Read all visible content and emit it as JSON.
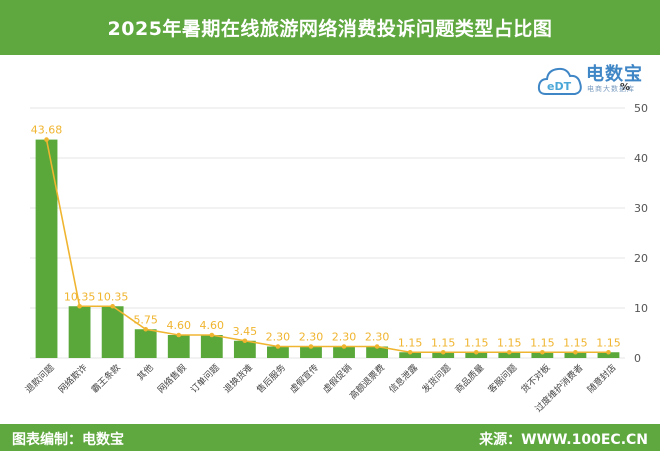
{
  "header": {
    "title": "2025年暑期在线旅游网络消费投诉问题类型占比图"
  },
  "logo": {
    "name": "电数宝",
    "subtitle": "电商大数据库",
    "badge": "eDT"
  },
  "footer": {
    "left": "图表编制：电数宝",
    "right": "来源：WWW.100EC.CN"
  },
  "colors": {
    "bar": "#5aa83a",
    "line": "#f0b530",
    "header": "#5fa83f"
  },
  "chart_data": {
    "type": "bar",
    "unit": "%",
    "ylim": [
      0,
      50
    ],
    "yticks": [
      0,
      10,
      20,
      30,
      40,
      50
    ],
    "y_axis_position": "right",
    "grid": true,
    "categories": [
      "退款问题",
      "网络欺诈",
      "霸王条款",
      "其他",
      "网络售假",
      "订单问题",
      "退换货难",
      "售后服务",
      "虚假宣传",
      "虚假促销",
      "高额退票费",
      "信息泄露",
      "发货问题",
      "商品质量",
      "客服问题",
      "货不对板",
      "过度维护消费者",
      "随意封店"
    ],
    "series": [
      {
        "values": [
          43.68,
          10.35,
          10.35,
          5.75,
          4.6,
          4.6,
          3.45,
          2.3,
          2.3,
          2.3,
          2.3,
          1.15,
          1.15,
          1.15,
          1.15,
          1.15,
          1.15,
          1.15
        ]
      }
    ],
    "labels": [
      "43.68",
      "10.35",
      "10.35",
      "5.75",
      "4.60",
      "4.60",
      "3.45",
      "2.30",
      "2.30",
      "2.30",
      "2.30",
      "1.15",
      "1.15",
      "1.15",
      "1.15",
      "1.15",
      "1.15",
      "1.15"
    ]
  }
}
